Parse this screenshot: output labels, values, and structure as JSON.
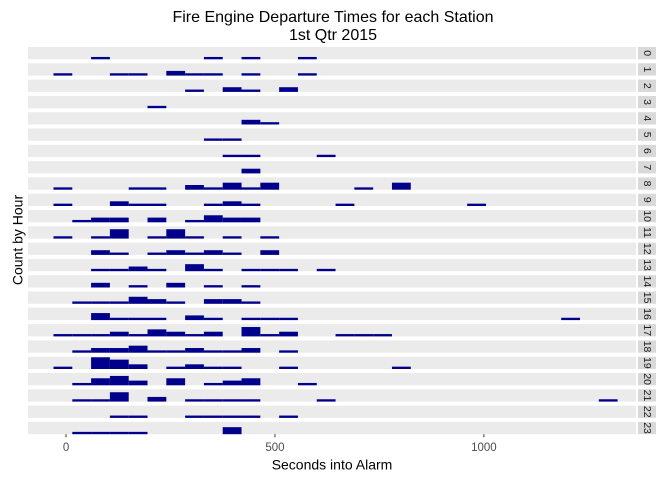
{
  "chart_data": {
    "type": "histogram",
    "title": "Fire Engine Departure Times for each Station",
    "subtitle": "1st Qtr 2015",
    "x_label": "Seconds into Alarm",
    "y_label": "Count by Hour",
    "color": "#00008b",
    "xlim": [
      -91,
      1364
    ],
    "xticks": [
      0,
      500,
      1000
    ],
    "ylim": [
      0,
      5.25
    ],
    "bins": [
      -30,
      15,
      60,
      105,
      150,
      195,
      240,
      285,
      330,
      375,
      420,
      465,
      510,
      555,
      600,
      645,
      690,
      735,
      780,
      825,
      870,
      915,
      960,
      1005,
      1050,
      1095,
      1140,
      1185,
      1230,
      1275,
      1320
    ],
    "facets": [
      "0",
      "1",
      "2",
      "3",
      "4",
      "5",
      "6",
      "7",
      "8",
      "9",
      "10",
      "11",
      "12",
      "13",
      "14",
      "15",
      "16",
      "17",
      "18",
      "19",
      "20",
      "21",
      "22",
      "23"
    ],
    "counts": [
      [
        0,
        0,
        1,
        0,
        0,
        0,
        0,
        0,
        1,
        0,
        1,
        0,
        0,
        1,
        0,
        0,
        0,
        0,
        0,
        0,
        0,
        0,
        0,
        0,
        0,
        0,
        0,
        0,
        0,
        0
      ],
      [
        1,
        0,
        0,
        1,
        1,
        0,
        2,
        1,
        1,
        0,
        1,
        0,
        0,
        1,
        0,
        0,
        0,
        0,
        0,
        0,
        0,
        0,
        0,
        0,
        0,
        0,
        0,
        0,
        0,
        0
      ],
      [
        0,
        0,
        0,
        0,
        0,
        0,
        0,
        1,
        0,
        2,
        1,
        0,
        2,
        0,
        0,
        0,
        0,
        0,
        0,
        0,
        0,
        0,
        0,
        0,
        0,
        0,
        0,
        0,
        0,
        0
      ],
      [
        0,
        0,
        0,
        0,
        0,
        1,
        0,
        0,
        0,
        0,
        0,
        0,
        0,
        0,
        0,
        0,
        0,
        0,
        0,
        0,
        0,
        0,
        0,
        0,
        0,
        0,
        0,
        0,
        0,
        0
      ],
      [
        0,
        0,
        0,
        0,
        0,
        0,
        0,
        0,
        0,
        0,
        2,
        1,
        0,
        0,
        0,
        0,
        0,
        0,
        0,
        0,
        0,
        0,
        0,
        0,
        0,
        0,
        0,
        0,
        0,
        0
      ],
      [
        0,
        0,
        0,
        0,
        0,
        0,
        0,
        0,
        1,
        1,
        0,
        0,
        0,
        0,
        0,
        0,
        0,
        0,
        0,
        0,
        0,
        0,
        0,
        0,
        0,
        0,
        0,
        0,
        0,
        0
      ],
      [
        0,
        0,
        0,
        0,
        0,
        0,
        0,
        0,
        0,
        1,
        1,
        0,
        0,
        0,
        1,
        0,
        0,
        0,
        0,
        0,
        0,
        0,
        0,
        0,
        0,
        0,
        0,
        0,
        0,
        0
      ],
      [
        0,
        0,
        0,
        0,
        0,
        0,
        0,
        0,
        0,
        0,
        2,
        0,
        0,
        0,
        0,
        0,
        0,
        0,
        0,
        0,
        0,
        0,
        0,
        0,
        0,
        0,
        0,
        0,
        0,
        0
      ],
      [
        1,
        0,
        0,
        0,
        1,
        1,
        0,
        2,
        1,
        3,
        1,
        3,
        0,
        0,
        0,
        0,
        1,
        0,
        3,
        0,
        0,
        0,
        0,
        0,
        0,
        0,
        0,
        0,
        0,
        0
      ],
      [
        1,
        0,
        0,
        2,
        1,
        1,
        0,
        0,
        1,
        2,
        1,
        0,
        0,
        0,
        0,
        1,
        0,
        0,
        0,
        0,
        0,
        0,
        1,
        0,
        0,
        0,
        0,
        0,
        0,
        0
      ],
      [
        0,
        1,
        2,
        2,
        0,
        2,
        0,
        1,
        3,
        2,
        2,
        0,
        0,
        0,
        0,
        0,
        0,
        0,
        0,
        0,
        0,
        0,
        0,
        0,
        0,
        0,
        0,
        0,
        0,
        0
      ],
      [
        1,
        0,
        1,
        4,
        0,
        1,
        4,
        1,
        0,
        1,
        0,
        1,
        0,
        0,
        0,
        0,
        0,
        0,
        0,
        0,
        0,
        0,
        0,
        0,
        0,
        0,
        0,
        0,
        0,
        0
      ],
      [
        0,
        0,
        2,
        1,
        0,
        1,
        2,
        1,
        2,
        1,
        0,
        2,
        0,
        0,
        0,
        0,
        0,
        0,
        0,
        0,
        0,
        0,
        0,
        0,
        0,
        0,
        0,
        0,
        0,
        0
      ],
      [
        0,
        0,
        1,
        1,
        2,
        1,
        0,
        3,
        1,
        0,
        1,
        1,
        1,
        0,
        1,
        0,
        0,
        0,
        0,
        0,
        0,
        0,
        0,
        0,
        0,
        0,
        0,
        0,
        0,
        0
      ],
      [
        0,
        0,
        2,
        0,
        1,
        0,
        2,
        0,
        1,
        0,
        1,
        0,
        0,
        0,
        0,
        0,
        0,
        0,
        0,
        0,
        0,
        0,
        0,
        0,
        0,
        0,
        0,
        0,
        0,
        0
      ],
      [
        0,
        1,
        1,
        1,
        3,
        2,
        1,
        0,
        2,
        2,
        1,
        0,
        0,
        0,
        0,
        0,
        0,
        0,
        0,
        0,
        0,
        0,
        0,
        0,
        0,
        0,
        0,
        0,
        0,
        0
      ],
      [
        0,
        0,
        3,
        1,
        1,
        1,
        0,
        2,
        1,
        0,
        1,
        1,
        1,
        0,
        0,
        0,
        0,
        0,
        0,
        0,
        0,
        0,
        0,
        0,
        0,
        0,
        0,
        1,
        0,
        0
      ],
      [
        1,
        1,
        1,
        2,
        1,
        3,
        2,
        1,
        2,
        0,
        4,
        1,
        2,
        0,
        0,
        1,
        1,
        1,
        0,
        0,
        0,
        0,
        0,
        0,
        0,
        0,
        0,
        0,
        0,
        0
      ],
      [
        0,
        1,
        2,
        2,
        3,
        1,
        1,
        2,
        1,
        1,
        2,
        0,
        1,
        0,
        0,
        0,
        0,
        0,
        0,
        0,
        0,
        0,
        0,
        0,
        0,
        0,
        0,
        0,
        0,
        0
      ],
      [
        1,
        0,
        5,
        4,
        2,
        0,
        1,
        2,
        1,
        1,
        0,
        0,
        1,
        0,
        0,
        0,
        0,
        0,
        1,
        0,
        0,
        0,
        0,
        0,
        0,
        0,
        0,
        0,
        0,
        0
      ],
      [
        0,
        1,
        3,
        4,
        2,
        0,
        3,
        0,
        1,
        2,
        3,
        0,
        0,
        1,
        0,
        0,
        0,
        0,
        0,
        0,
        0,
        0,
        0,
        0,
        0,
        0,
        0,
        0,
        0,
        0
      ],
      [
        0,
        1,
        1,
        4,
        0,
        2,
        0,
        1,
        1,
        1,
        1,
        0,
        0,
        0,
        1,
        0,
        0,
        0,
        0,
        0,
        0,
        0,
        0,
        0,
        0,
        0,
        0,
        0,
        0,
        1
      ],
      [
        0,
        0,
        0,
        1,
        1,
        0,
        0,
        1,
        1,
        1,
        1,
        0,
        1,
        0,
        0,
        0,
        0,
        0,
        0,
        0,
        0,
        0,
        0,
        0,
        0,
        0,
        0,
        0,
        0,
        0
      ],
      [
        0,
        1,
        1,
        1,
        1,
        0,
        0,
        0,
        0,
        3,
        0,
        0,
        0,
        0,
        0,
        0,
        0,
        0,
        0,
        0,
        0,
        0,
        0,
        0,
        0,
        0,
        0,
        0,
        0,
        0
      ]
    ]
  }
}
